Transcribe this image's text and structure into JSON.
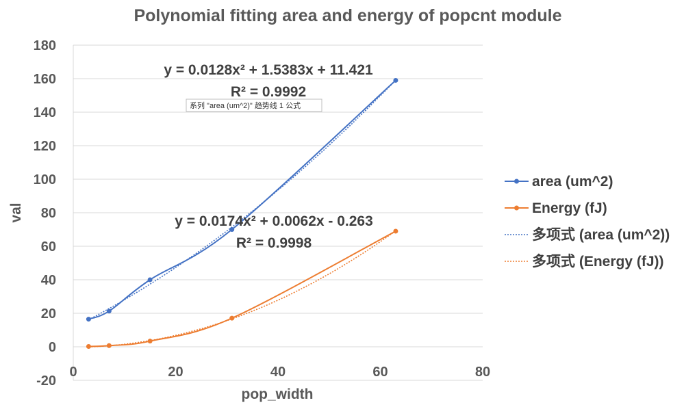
{
  "chart_data": {
    "type": "scatter",
    "title": "Polynomial fitting area and energy of popcnt module",
    "xlabel": "pop_width",
    "ylabel": "val",
    "xlim": [
      0,
      80
    ],
    "ylim": [
      -20,
      180
    ],
    "xticks": [
      0,
      20,
      40,
      60,
      80
    ],
    "yticks": [
      -20,
      0,
      20,
      40,
      60,
      80,
      100,
      120,
      140,
      160,
      180
    ],
    "grid": "horizontal",
    "legend_position": "right",
    "series": [
      {
        "name": "area (um^2)",
        "color": "#4472C4",
        "style": "smooth-line-with-markers",
        "x": [
          3,
          7,
          15,
          31,
          63
        ],
        "y": [
          16.5,
          21.3,
          40.0,
          70.0,
          159.0
        ]
      },
      {
        "name": "Energy (fJ)",
        "color": "#ED7D31",
        "style": "smooth-line-with-markers",
        "x": [
          3,
          7,
          15,
          31,
          63
        ],
        "y": [
          0.2,
          0.7,
          3.4,
          17.1,
          69.0
        ]
      }
    ],
    "trendlines": [
      {
        "name": "多项式 (area (um^2))",
        "color": "#4472C4",
        "style": "dotted",
        "coefficients": [
          0.0128,
          1.5383,
          11.421
        ],
        "x_range": [
          3,
          63
        ],
        "equation": "y = 0.0128x² + 1.5383x + 11.421",
        "r2": "R² = 0.9992"
      },
      {
        "name": "多项式 (Energy (fJ))",
        "color": "#ED7D31",
        "style": "dotted",
        "coefficients": [
          0.0174,
          0.0062,
          -0.263
        ],
        "x_range": [
          3,
          63
        ],
        "equation": "y = 0.0174x² + 0.0062x - 0.263",
        "r2": "R² = 0.9998"
      }
    ],
    "tooltip": "系列 \"area (um^2)\" 趋势线 1 公式"
  }
}
